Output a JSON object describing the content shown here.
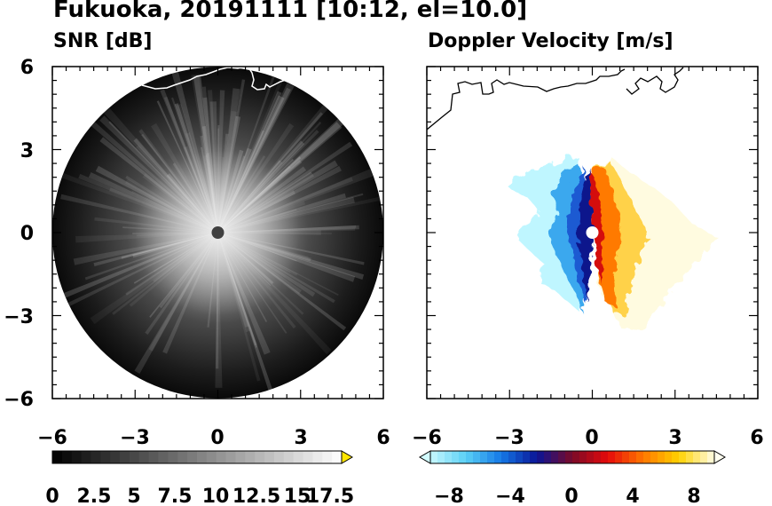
{
  "title": "Fukuoka, 20191111 [10:12, el=10.0]",
  "chart_data": [
    {
      "type": "heatmap",
      "title": "SNR [dB]",
      "xlim": [
        -6,
        6
      ],
      "ylim": [
        -6,
        6
      ],
      "xticks": [
        -6,
        -3,
        0,
        3,
        6
      ],
      "yticks": [
        -6,
        -3,
        0,
        3,
        6
      ],
      "xtick_labels": [
        "−6",
        "−3",
        "0",
        "3",
        "6"
      ],
      "ytick_labels": [
        "6",
        "3",
        "0",
        "−3",
        "−6"
      ],
      "field": "polar radar scan, range radius 6, bright radial streaks near centre fading outward",
      "colorbar": {
        "min": 0,
        "max": 18.75,
        "step": 0.625,
        "extend": "max",
        "tick_values": [
          0,
          2.5,
          5,
          7.5,
          10,
          12.5,
          15,
          17.5
        ],
        "tick_labels": [
          "0",
          "2.5",
          "5",
          "7.5",
          "10",
          "12.5",
          "15",
          "17.5"
        ],
        "colors": [
          "#000000",
          "#ffffff"
        ],
        "extend_color": "#ffe600"
      }
    },
    {
      "type": "heatmap",
      "title": "Doppler Velocity [m/s]",
      "xlim": [
        -6,
        6
      ],
      "ylim": [
        -6,
        6
      ],
      "xticks": [
        -6,
        -3,
        0,
        3,
        6
      ],
      "yticks": [
        -6,
        -3,
        0,
        3,
        6
      ],
      "xtick_labels": [
        "−6",
        "−3",
        "0",
        "3",
        "6"
      ],
      "field": "negative velocities (blue) west of the radar, positive velocities (red to yellow) east of the radar",
      "colorbar": {
        "min": -10,
        "max": 10,
        "step": 0.5,
        "extend": "both",
        "tick_values": [
          -8,
          -4,
          0,
          4,
          8
        ],
        "tick_labels": [
          "−8",
          "−4",
          "0",
          "4",
          "8"
        ],
        "colors": [
          "#c8f8ff",
          "#5ad0f5",
          "#1478e6",
          "#0a1496",
          "#7a0a28",
          "#e60a0a",
          "#ff7800",
          "#ffd200",
          "#fffce6"
        ],
        "extend_low_color": "#d2fcff",
        "extend_high_color": "#fffff0"
      }
    }
  ],
  "colors": {
    "coastline_snr": "#ffffff",
    "coastline_doppler": "#000000",
    "radar_center_snr": "#404040",
    "radar_center_doppler": "#ffffff"
  }
}
